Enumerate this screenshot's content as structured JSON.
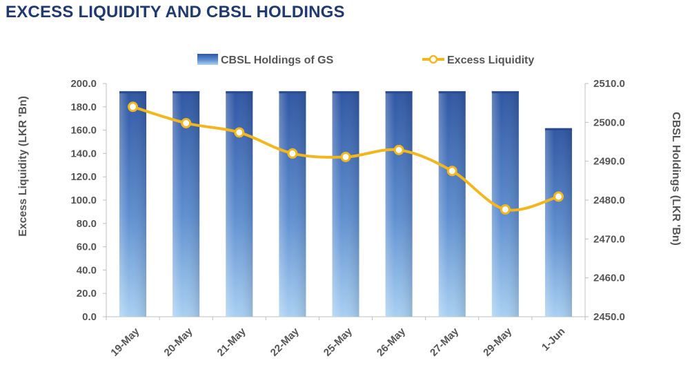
{
  "title": "EXCESS LIQUIDITY AND CBSL HOLDINGS",
  "colors": {
    "title": "#1f3a73",
    "bar_top": "#3a64b0",
    "bar_bottom": "#a9d0f2",
    "line": "#f3b71d",
    "axis": "#bfbfbf",
    "text": "#555555"
  },
  "chart_data": {
    "type": "bar+line",
    "categories": [
      "19-May",
      "20-May",
      "21-May",
      "22-May",
      "25-May",
      "26-May",
      "27-May",
      "29-May",
      "1-Jun"
    ],
    "series": [
      {
        "name": "CBSL Holdings of GS",
        "type": "bar",
        "axis": "right",
        "values": [
          2508.0,
          2508.0,
          2508.0,
          2508.0,
          2508.0,
          2508.0,
          2508.0,
          2508.0,
          2498.5
        ]
      },
      {
        "name": "Excess Liquidity",
        "type": "line",
        "axis": "left",
        "values": [
          180.0,
          166.0,
          158.0,
          140.0,
          137.0,
          143.0,
          125.0,
          92.0,
          103.0
        ]
      }
    ],
    "y_left": {
      "label": "Excess Liquidity (LKR 'Bn)",
      "min": 0,
      "max": 200,
      "ticks": [
        "0.0",
        "20.0",
        "40.0",
        "60.0",
        "80.0",
        "100.0",
        "120.0",
        "140.0",
        "160.0",
        "180.0",
        "200.0"
      ]
    },
    "y_right": {
      "label": "CBSL Holdings (LKR 'Bn)",
      "min": 2450,
      "max": 2510,
      "ticks": [
        "2450.0",
        "2460.0",
        "2470.0",
        "2480.0",
        "2490.0",
        "2500.0",
        "2510.0"
      ]
    },
    "grid": false,
    "legend": "top-center"
  }
}
